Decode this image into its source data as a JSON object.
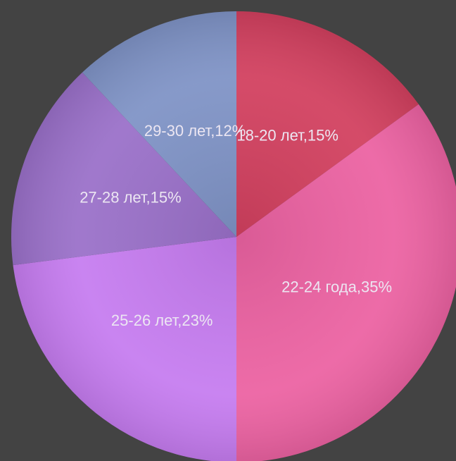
{
  "chart_data": {
    "type": "pie",
    "categories": [
      "18-20 лет,15%",
      "22-24 года,35%",
      "25-26 лет,23%",
      "27-28 лет,15%",
      "29-30 лет,12%"
    ],
    "values": [
      15,
      35,
      23,
      15,
      12
    ],
    "colors": [
      "#d2405f",
      "#ec62a2",
      "#c67cf0",
      "#9a70c9",
      "#7f93c6"
    ]
  }
}
